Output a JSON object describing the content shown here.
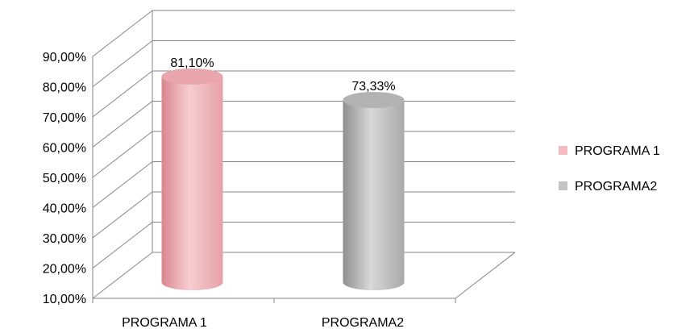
{
  "chart_data": {
    "type": "bar",
    "style": "3d-cylinder",
    "categories": [
      "PROGRAMA 1",
      "PROGRAMA2"
    ],
    "series": [
      {
        "name": "PROGRAMA 1",
        "category": "PROGRAMA 1",
        "value": 81.1,
        "label": "81,10%",
        "color": "#f2bcc0"
      },
      {
        "name": "PROGRAMA2",
        "category": "PROGRAMA2",
        "value": 73.33,
        "label": "73,33%",
        "color": "#c4c4c4"
      }
    ],
    "y_ticks": [
      "10,00%",
      "20,00%",
      "30,00%",
      "40,00%",
      "50,00%",
      "60,00%",
      "70,00%",
      "80,00%",
      "90,00%"
    ],
    "ylim": [
      10,
      90
    ],
    "grid": true,
    "legend_position": "right"
  }
}
